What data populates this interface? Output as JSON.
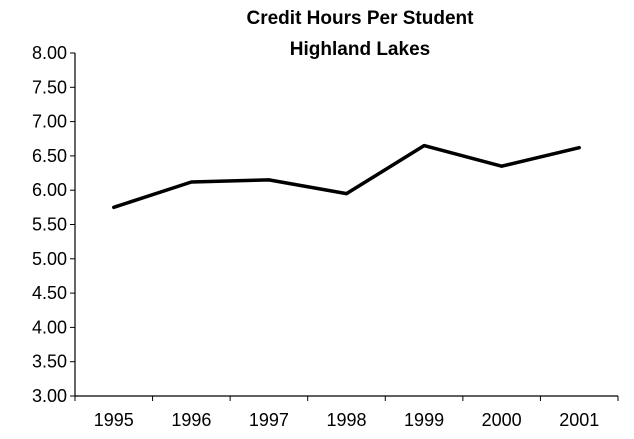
{
  "chart_data": {
    "type": "line",
    "title_lines": [
      "Credit Hours Per Student",
      "Highland Lakes"
    ],
    "categories": [
      "1995",
      "1996",
      "1997",
      "1998",
      "1999",
      "2000",
      "2001"
    ],
    "series": [
      {
        "values": [
          5.75,
          6.12,
          6.15,
          5.95,
          6.65,
          6.35,
          6.62
        ]
      }
    ],
    "y_ticks": [
      "8.00",
      "7.50",
      "7.00",
      "6.50",
      "6.00",
      "5.50",
      "5.00",
      "4.50",
      "4.00",
      "3.50",
      "3.00"
    ],
    "ylim": [
      3.0,
      8.0
    ],
    "xlabel": "",
    "ylabel": "",
    "grid": false,
    "line_color": "#000000"
  }
}
